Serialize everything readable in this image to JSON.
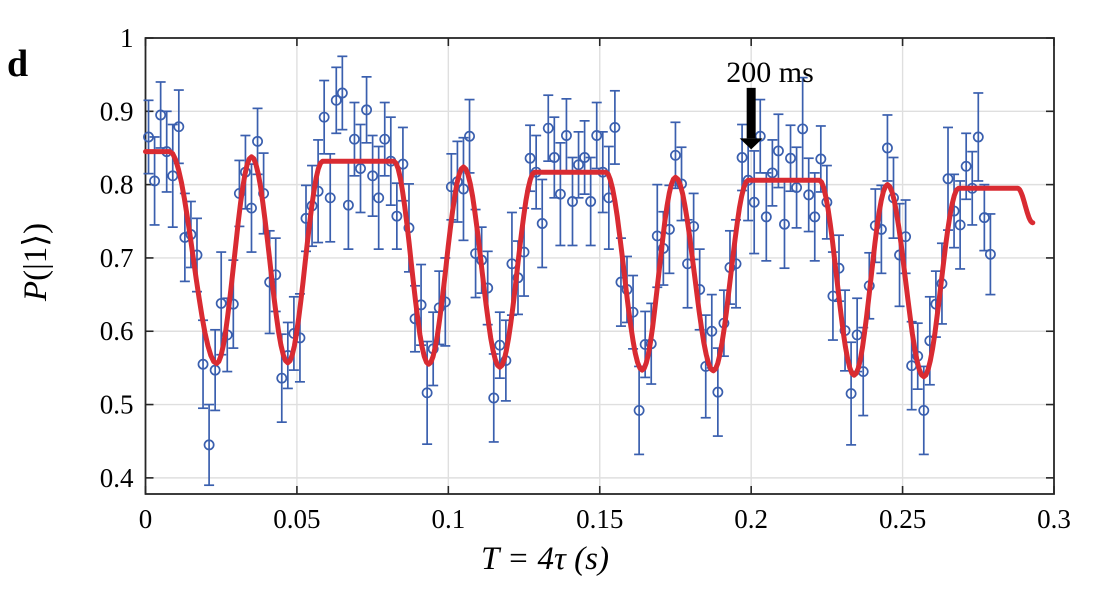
{
  "panel_label": "d",
  "colors": {
    "data": "#3a5fae",
    "fit": "#d92b32",
    "grid": "#dfdfdf",
    "axis": "#262626",
    "annotation": "#000000",
    "background": "#ffffff"
  },
  "axes": {
    "xlabel": "T = 4τ (s)",
    "ylabel": "P(|1⟩)",
    "ylabel_var": "P",
    "ylabel_rest": "(|1⟩)",
    "xlim": [
      0,
      0.3
    ],
    "ylim": [
      0.378,
      1.0
    ],
    "xticks": [
      0,
      0.05,
      0.1,
      0.15,
      0.2,
      0.25,
      0.3
    ],
    "xtick_labels": [
      "0",
      "0.05",
      "0.1",
      "0.15",
      "0.2",
      "0.25",
      "0.3"
    ],
    "yticks": [
      0.4,
      0.5,
      0.6,
      0.7,
      0.8,
      0.9,
      1
    ],
    "ytick_labels": [
      "0.4",
      "0.5",
      "0.6",
      "0.7",
      "0.8",
      "0.9",
      "1"
    ],
    "grid": true
  },
  "annotation": {
    "text": "200 ms",
    "x": 0.2,
    "arrow_tip_y": 0.848,
    "arrow_base_y": 0.932
  },
  "chart_data": {
    "type": "scatter",
    "title": "",
    "xlabel": "T = 4τ (s)",
    "ylabel": "P(|1⟩)",
    "xlim": [
      0,
      0.3
    ],
    "ylim": [
      0.378,
      1.0
    ],
    "grid": "on",
    "legend": "none",
    "annotations": [
      {
        "text": "200 ms",
        "x": 0.2,
        "arrow": "down"
      }
    ],
    "series": [
      {
        "name": "measured-population",
        "type": "scatter-errorbar",
        "marker": "open-circle",
        "color_key": "data",
        "points": [
          [
            0.001,
            0.865,
            0.05
          ],
          [
            0.003,
            0.805,
            0.06
          ],
          [
            0.005,
            0.895,
            0.045
          ],
          [
            0.007,
            0.845,
            0.055
          ],
          [
            0.009,
            0.812,
            0.07
          ],
          [
            0.011,
            0.879,
            0.05
          ],
          [
            0.013,
            0.728,
            0.06
          ],
          [
            0.015,
            0.732,
            0.045
          ],
          [
            0.017,
            0.704,
            0.05
          ],
          [
            0.019,
            0.555,
            0.06
          ],
          [
            0.021,
            0.445,
            0.055
          ],
          [
            0.023,
            0.547,
            0.055
          ],
          [
            0.025,
            0.638,
            0.07
          ],
          [
            0.027,
            0.595,
            0.05
          ],
          [
            0.029,
            0.637,
            0.06
          ],
          [
            0.031,
            0.788,
            0.045
          ],
          [
            0.033,
            0.817,
            0.05
          ],
          [
            0.035,
            0.768,
            0.06
          ],
          [
            0.037,
            0.859,
            0.045
          ],
          [
            0.039,
            0.788,
            0.055
          ],
          [
            0.041,
            0.667,
            0.07
          ],
          [
            0.043,
            0.677,
            0.05
          ],
          [
            0.045,
            0.536,
            0.06
          ],
          [
            0.047,
            0.567,
            0.045
          ],
          [
            0.049,
            0.597,
            0.05
          ],
          [
            0.051,
            0.591,
            0.06
          ],
          [
            0.053,
            0.754,
            0.045
          ],
          [
            0.055,
            0.771,
            0.055
          ],
          [
            0.057,
            0.791,
            0.07
          ],
          [
            0.059,
            0.892,
            0.05
          ],
          [
            0.061,
            0.782,
            0.06
          ],
          [
            0.063,
            0.915,
            0.045
          ],
          [
            0.065,
            0.925,
            0.05
          ],
          [
            0.067,
            0.772,
            0.06
          ],
          [
            0.069,
            0.862,
            0.05
          ],
          [
            0.071,
            0.822,
            0.06
          ],
          [
            0.073,
            0.902,
            0.045
          ],
          [
            0.075,
            0.812,
            0.055
          ],
          [
            0.077,
            0.782,
            0.07
          ],
          [
            0.079,
            0.862,
            0.05
          ],
          [
            0.081,
            0.832,
            0.06
          ],
          [
            0.083,
            0.757,
            0.045
          ],
          [
            0.085,
            0.828,
            0.05
          ],
          [
            0.087,
            0.741,
            0.06
          ],
          [
            0.089,
            0.617,
            0.045
          ],
          [
            0.091,
            0.636,
            0.055
          ],
          [
            0.093,
            0.516,
            0.07
          ],
          [
            0.095,
            0.576,
            0.05
          ],
          [
            0.097,
            0.632,
            0.05
          ],
          [
            0.099,
            0.64,
            0.06
          ],
          [
            0.101,
            0.797,
            0.045
          ],
          [
            0.103,
            0.804,
            0.055
          ],
          [
            0.105,
            0.794,
            0.07
          ],
          [
            0.107,
            0.866,
            0.05
          ],
          [
            0.109,
            0.706,
            0.06
          ],
          [
            0.111,
            0.697,
            0.045
          ],
          [
            0.113,
            0.659,
            0.05
          ],
          [
            0.115,
            0.509,
            0.06
          ],
          [
            0.117,
            0.581,
            0.045
          ],
          [
            0.119,
            0.56,
            0.055
          ],
          [
            0.121,
            0.692,
            0.07
          ],
          [
            0.123,
            0.673,
            0.05
          ],
          [
            0.125,
            0.708,
            0.06
          ],
          [
            0.127,
            0.836,
            0.045
          ],
          [
            0.129,
            0.817,
            0.05
          ],
          [
            0.131,
            0.747,
            0.06
          ],
          [
            0.133,
            0.877,
            0.045
          ],
          [
            0.135,
            0.837,
            0.055
          ],
          [
            0.137,
            0.787,
            0.07
          ],
          [
            0.139,
            0.867,
            0.05
          ],
          [
            0.141,
            0.777,
            0.06
          ],
          [
            0.143,
            0.827,
            0.045
          ],
          [
            0.145,
            0.837,
            0.05
          ],
          [
            0.147,
            0.777,
            0.06
          ],
          [
            0.149,
            0.867,
            0.045
          ],
          [
            0.151,
            0.817,
            0.055
          ],
          [
            0.153,
            0.782,
            0.07
          ],
          [
            0.155,
            0.878,
            0.05
          ],
          [
            0.157,
            0.667,
            0.06
          ],
          [
            0.159,
            0.657,
            0.045
          ],
          [
            0.161,
            0.626,
            0.05
          ],
          [
            0.163,
            0.492,
            0.06
          ],
          [
            0.165,
            0.582,
            0.045
          ],
          [
            0.167,
            0.583,
            0.055
          ],
          [
            0.169,
            0.73,
            0.07
          ],
          [
            0.171,
            0.713,
            0.05
          ],
          [
            0.173,
            0.739,
            0.06
          ],
          [
            0.175,
            0.84,
            0.045
          ],
          [
            0.177,
            0.801,
            0.05
          ],
          [
            0.179,
            0.692,
            0.06
          ],
          [
            0.181,
            0.743,
            0.045
          ],
          [
            0.183,
            0.657,
            0.055
          ],
          [
            0.185,
            0.552,
            0.07
          ],
          [
            0.187,
            0.6,
            0.05
          ],
          [
            0.189,
            0.517,
            0.06
          ],
          [
            0.191,
            0.611,
            0.045
          ],
          [
            0.193,
            0.687,
            0.05
          ],
          [
            0.195,
            0.692,
            0.06
          ],
          [
            0.197,
            0.837,
            0.045
          ],
          [
            0.199,
            0.806,
            0.055
          ],
          [
            0.201,
            0.776,
            0.07
          ],
          [
            0.203,
            0.866,
            0.05
          ],
          [
            0.205,
            0.756,
            0.06
          ],
          [
            0.207,
            0.816,
            0.045
          ],
          [
            0.209,
            0.846,
            0.05
          ],
          [
            0.211,
            0.746,
            0.06
          ],
          [
            0.213,
            0.836,
            0.045
          ],
          [
            0.215,
            0.796,
            0.055
          ],
          [
            0.217,
            0.876,
            0.07
          ],
          [
            0.219,
            0.786,
            0.05
          ],
          [
            0.221,
            0.756,
            0.06
          ],
          [
            0.223,
            0.835,
            0.045
          ],
          [
            0.225,
            0.776,
            0.05
          ],
          [
            0.227,
            0.648,
            0.06
          ],
          [
            0.229,
            0.686,
            0.045
          ],
          [
            0.231,
            0.601,
            0.055
          ],
          [
            0.233,
            0.515,
            0.07
          ],
          [
            0.235,
            0.595,
            0.05
          ],
          [
            0.237,
            0.545,
            0.06
          ],
          [
            0.239,
            0.662,
            0.045
          ],
          [
            0.241,
            0.744,
            0.05
          ],
          [
            0.243,
            0.739,
            0.06
          ],
          [
            0.245,
            0.85,
            0.045
          ],
          [
            0.247,
            0.782,
            0.055
          ],
          [
            0.249,
            0.704,
            0.07
          ],
          [
            0.251,
            0.729,
            0.05
          ],
          [
            0.253,
            0.553,
            0.06
          ],
          [
            0.255,
            0.566,
            0.045
          ],
          [
            0.257,
            0.492,
            0.06
          ],
          [
            0.259,
            0.587,
            0.06
          ],
          [
            0.261,
            0.637,
            0.045
          ],
          [
            0.263,
            0.665,
            0.055
          ],
          [
            0.265,
            0.808,
            0.07
          ],
          [
            0.267,
            0.764,
            0.05
          ],
          [
            0.269,
            0.745,
            0.06
          ],
          [
            0.271,
            0.825,
            0.045
          ],
          [
            0.273,
            0.795,
            0.05
          ],
          [
            0.275,
            0.865,
            0.06
          ],
          [
            0.277,
            0.755,
            0.045
          ],
          [
            0.279,
            0.705,
            0.055
          ]
        ]
      },
      {
        "name": "fit-curve",
        "type": "line",
        "color_key": "fit",
        "interpolation": "half-cosine-between-extrema",
        "anchors": [
          [
            0,
            0.845
          ],
          [
            0.008,
            0.845
          ],
          [
            0.0235,
            0.556
          ],
          [
            0.035,
            0.838
          ],
          [
            0.047,
            0.557
          ],
          [
            0.0585,
            0.832
          ],
          [
            0.082,
            0.832
          ],
          [
            0.0935,
            0.555
          ],
          [
            0.105,
            0.824
          ],
          [
            0.117,
            0.551
          ],
          [
            0.1285,
            0.817
          ],
          [
            0.152,
            0.817
          ],
          [
            0.164,
            0.547
          ],
          [
            0.175,
            0.81
          ],
          [
            0.1875,
            0.546
          ],
          [
            0.199,
            0.806
          ],
          [
            0.2225,
            0.806
          ],
          [
            0.234,
            0.54
          ],
          [
            0.245,
            0.8
          ],
          [
            0.257,
            0.538
          ],
          [
            0.2685,
            0.795
          ],
          [
            0.288,
            0.795
          ],
          [
            0.293,
            0.748
          ]
        ]
      }
    ]
  }
}
